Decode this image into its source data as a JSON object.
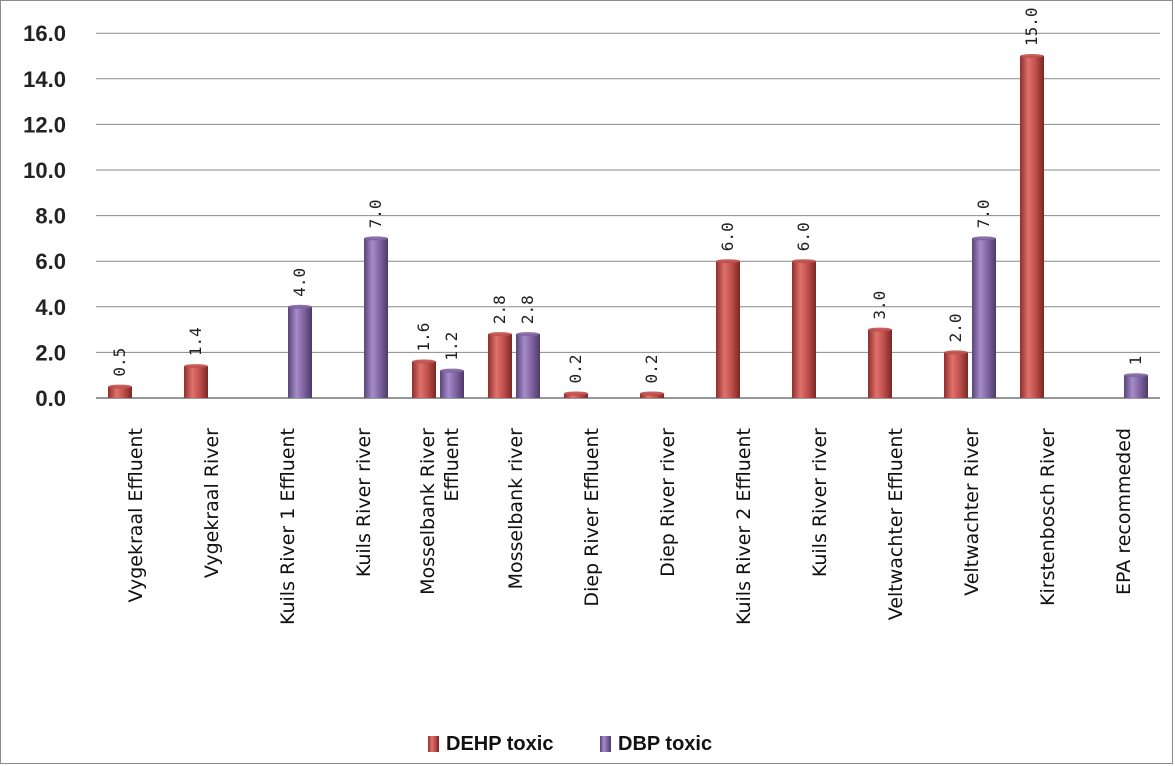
{
  "chart_data": {
    "type": "bar",
    "title": "",
    "xlabel": "",
    "ylabel": "",
    "ylim": [
      0,
      16
    ],
    "yticks": [
      "0.0",
      "2.0",
      "4.0",
      "6.0",
      "8.0",
      "10.0",
      "12.0",
      "14.0",
      "16.0"
    ],
    "grid": true,
    "legend_position": "bottom",
    "categories": [
      [
        "Vygekraal Effluent"
      ],
      [
        "Vygekraal River"
      ],
      [
        "Kuils River 1 Effluent"
      ],
      [
        "Kuils River river"
      ],
      [
        "Mosselbank River",
        "Effluent"
      ],
      [
        "Mosselbank river"
      ],
      [
        "Diep River Effluent"
      ],
      [
        "Diep River river"
      ],
      [
        "Kuils River 2 Effluent"
      ],
      [
        "Kuils River river"
      ],
      [
        "Veltwachter Effluent"
      ],
      [
        "Veltwachter River"
      ],
      [
        "Kirstenbosch River"
      ],
      [
        "EPA recommeded"
      ]
    ],
    "series": [
      {
        "name": "DEHP toxic",
        "color": "#c0504d",
        "values": [
          0.5,
          1.4,
          null,
          null,
          1.6,
          2.8,
          0.2,
          0.2,
          6.0,
          6.0,
          3.0,
          2.0,
          15.0,
          null
        ],
        "labels": [
          "0.5",
          "1.4",
          "",
          "",
          "1.6",
          "2.8",
          "0.2",
          "0.2",
          "6.0",
          "6.0",
          "3.0",
          "2.0",
          "15.0",
          ""
        ]
      },
      {
        "name": "DBP toxic",
        "color": "#8064a2",
        "values": [
          null,
          null,
          4.0,
          7.0,
          1.2,
          2.8,
          null,
          null,
          null,
          null,
          null,
          7.0,
          null,
          1
        ],
        "labels": [
          "",
          "",
          "4.0",
          "7.0",
          "1.2",
          "2.8",
          "",
          "",
          "",
          "",
          "",
          "7.0",
          "",
          "1"
        ]
      }
    ]
  }
}
